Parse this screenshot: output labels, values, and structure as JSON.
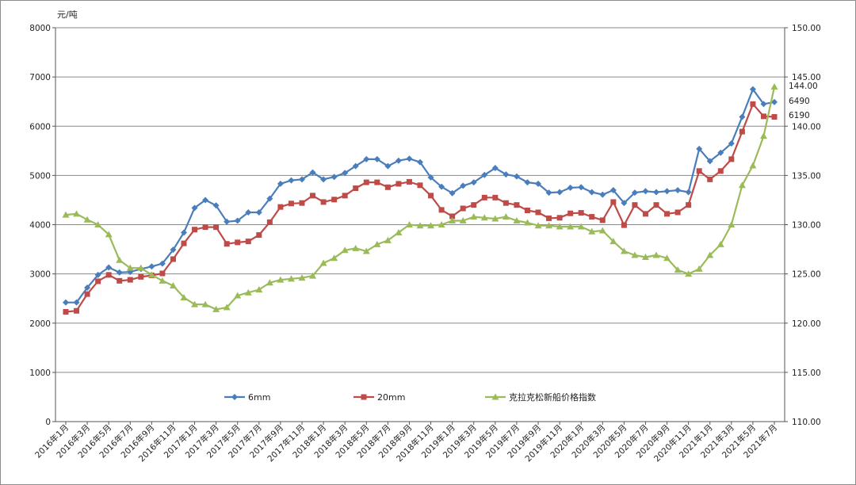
{
  "chart_data": {
    "type": "line",
    "y_unit": "元/吨",
    "ylim": [
      0,
      8000
    ],
    "yticks": [
      0,
      1000,
      2000,
      3000,
      4000,
      5000,
      6000,
      7000,
      8000
    ],
    "y2lim": [
      110,
      150
    ],
    "y2ticks": [
      "110.00",
      "115.00",
      "120.00",
      "125.00",
      "130.00",
      "135.00",
      "140.00",
      "145.00",
      "150.00"
    ],
    "grid": true,
    "legend_position": "bottom",
    "x": [
      "2016年1月",
      "2016年2月",
      "2016年3月",
      "2016年4月",
      "2016年5月",
      "2016年6月",
      "2016年7月",
      "2016年8月",
      "2016年9月",
      "2016年10月",
      "2016年11月",
      "2016年12月",
      "2017年1月",
      "2017年2月",
      "2017年3月",
      "2017年4月",
      "2017年5月",
      "2017年6月",
      "2017年7月",
      "2017年8月",
      "2017年9月",
      "2017年10月",
      "2017年11月",
      "2017年12月",
      "2018年1月",
      "2018年2月",
      "2018年3月",
      "2018年4月",
      "2018年5月",
      "2018年6月",
      "2018年7月",
      "2018年8月",
      "2018年9月",
      "2018年10月",
      "2018年11月",
      "2018年12月",
      "2019年1月",
      "2019年2月",
      "2019年3月",
      "2019年4月",
      "2019年5月",
      "2019年6月",
      "2019年7月",
      "2019年8月",
      "2019年9月",
      "2019年10月",
      "2019年11月",
      "2019年12月",
      "2020年1月",
      "2020年2月",
      "2020年3月",
      "2020年4月",
      "2020年5月",
      "2020年6月",
      "2020年7月",
      "2020年8月",
      "2020年9月",
      "2020年10月",
      "2020年11月",
      "2020年12月",
      "2021年1月",
      "2021年2月",
      "2021年3月",
      "2021年4月",
      "2021年5月",
      "2021年6月",
      "2021年7月"
    ],
    "xtick_labels": [
      "2016年1月",
      "2016年3月",
      "2016年5月",
      "2016年7月",
      "2016年9月",
      "2016年11月",
      "2017年1月",
      "2017年3月",
      "2017年5月",
      "2017年7月",
      "2017年9月",
      "2017年11月",
      "2018年1月",
      "2018年3月",
      "2018年5月",
      "2018年7月",
      "2018年9月",
      "2018年11月",
      "2019年1月",
      "2019年3月",
      "2019年5月",
      "2019年7月",
      "2019年9月",
      "2019年11月",
      "2020年1月",
      "2020年3月",
      "2020年5月",
      "2020年7月",
      "2020年9月",
      "2020年11月",
      "2021年1月",
      "2021年3月",
      "2021年5月",
      "2021年7月"
    ],
    "series": [
      {
        "name": "6mm",
        "axis": "left",
        "color": "#4a7ebb",
        "marker": "diamond",
        "values": [
          2420,
          2420,
          2720,
          2980,
          3130,
          3030,
          3040,
          3100,
          3150,
          3210,
          3490,
          3840,
          4340,
          4500,
          4390,
          4060,
          4080,
          4250,
          4250,
          4530,
          4830,
          4900,
          4920,
          5060,
          4920,
          4970,
          5050,
          5190,
          5330,
          5330,
          5190,
          5300,
          5340,
          5270,
          4960,
          4770,
          4640,
          4790,
          4860,
          5010,
          5150,
          5020,
          4980,
          4860,
          4830,
          4650,
          4660,
          4750,
          4760,
          4660,
          4610,
          4700,
          4440,
          4650,
          4680,
          4660,
          4680,
          4700,
          4660,
          5540,
          5290,
          5460,
          5650,
          6190,
          6750,
          6450,
          6490
        ],
        "end_label": "6490"
      },
      {
        "name": "20mm",
        "axis": "left",
        "color": "#be4b48",
        "marker": "square",
        "values": [
          2230,
          2250,
          2590,
          2850,
          2980,
          2860,
          2880,
          2940,
          2970,
          3010,
          3300,
          3620,
          3900,
          3950,
          3950,
          3610,
          3640,
          3660,
          3790,
          4050,
          4360,
          4430,
          4440,
          4590,
          4460,
          4510,
          4590,
          4740,
          4860,
          4860,
          4760,
          4830,
          4870,
          4800,
          4590,
          4300,
          4170,
          4330,
          4400,
          4550,
          4550,
          4440,
          4400,
          4290,
          4250,
          4130,
          4140,
          4230,
          4240,
          4160,
          4090,
          4460,
          3990,
          4400,
          4220,
          4400,
          4220,
          4250,
          4400,
          5090,
          4920,
          5090,
          5330,
          5890,
          6450,
          6200,
          6190
        ],
        "end_label": "6190"
      },
      {
        "name": "克拉克松新船价格指数",
        "axis": "right",
        "color": "#9bbb59",
        "marker": "triangle",
        "values": [
          131.0,
          131.1,
          130.5,
          130.0,
          129.0,
          126.4,
          125.6,
          125.6,
          124.9,
          124.3,
          123.8,
          122.6,
          121.9,
          121.9,
          121.4,
          121.6,
          122.8,
          123.1,
          123.4,
          124.1,
          124.4,
          124.5,
          124.6,
          124.8,
          126.1,
          126.6,
          127.4,
          127.6,
          127.3,
          128.0,
          128.4,
          129.2,
          130.0,
          129.9,
          129.9,
          130.0,
          130.4,
          130.4,
          130.8,
          130.7,
          130.6,
          130.8,
          130.4,
          130.2,
          129.9,
          129.9,
          129.8,
          129.8,
          129.8,
          129.3,
          129.4,
          128.3,
          127.3,
          126.9,
          126.7,
          126.9,
          126.6,
          125.4,
          125.0,
          125.5,
          126.9,
          128.0,
          130.0,
          134.0,
          136.0,
          139.0,
          144.0
        ],
        "end_label": "144.00"
      }
    ]
  }
}
